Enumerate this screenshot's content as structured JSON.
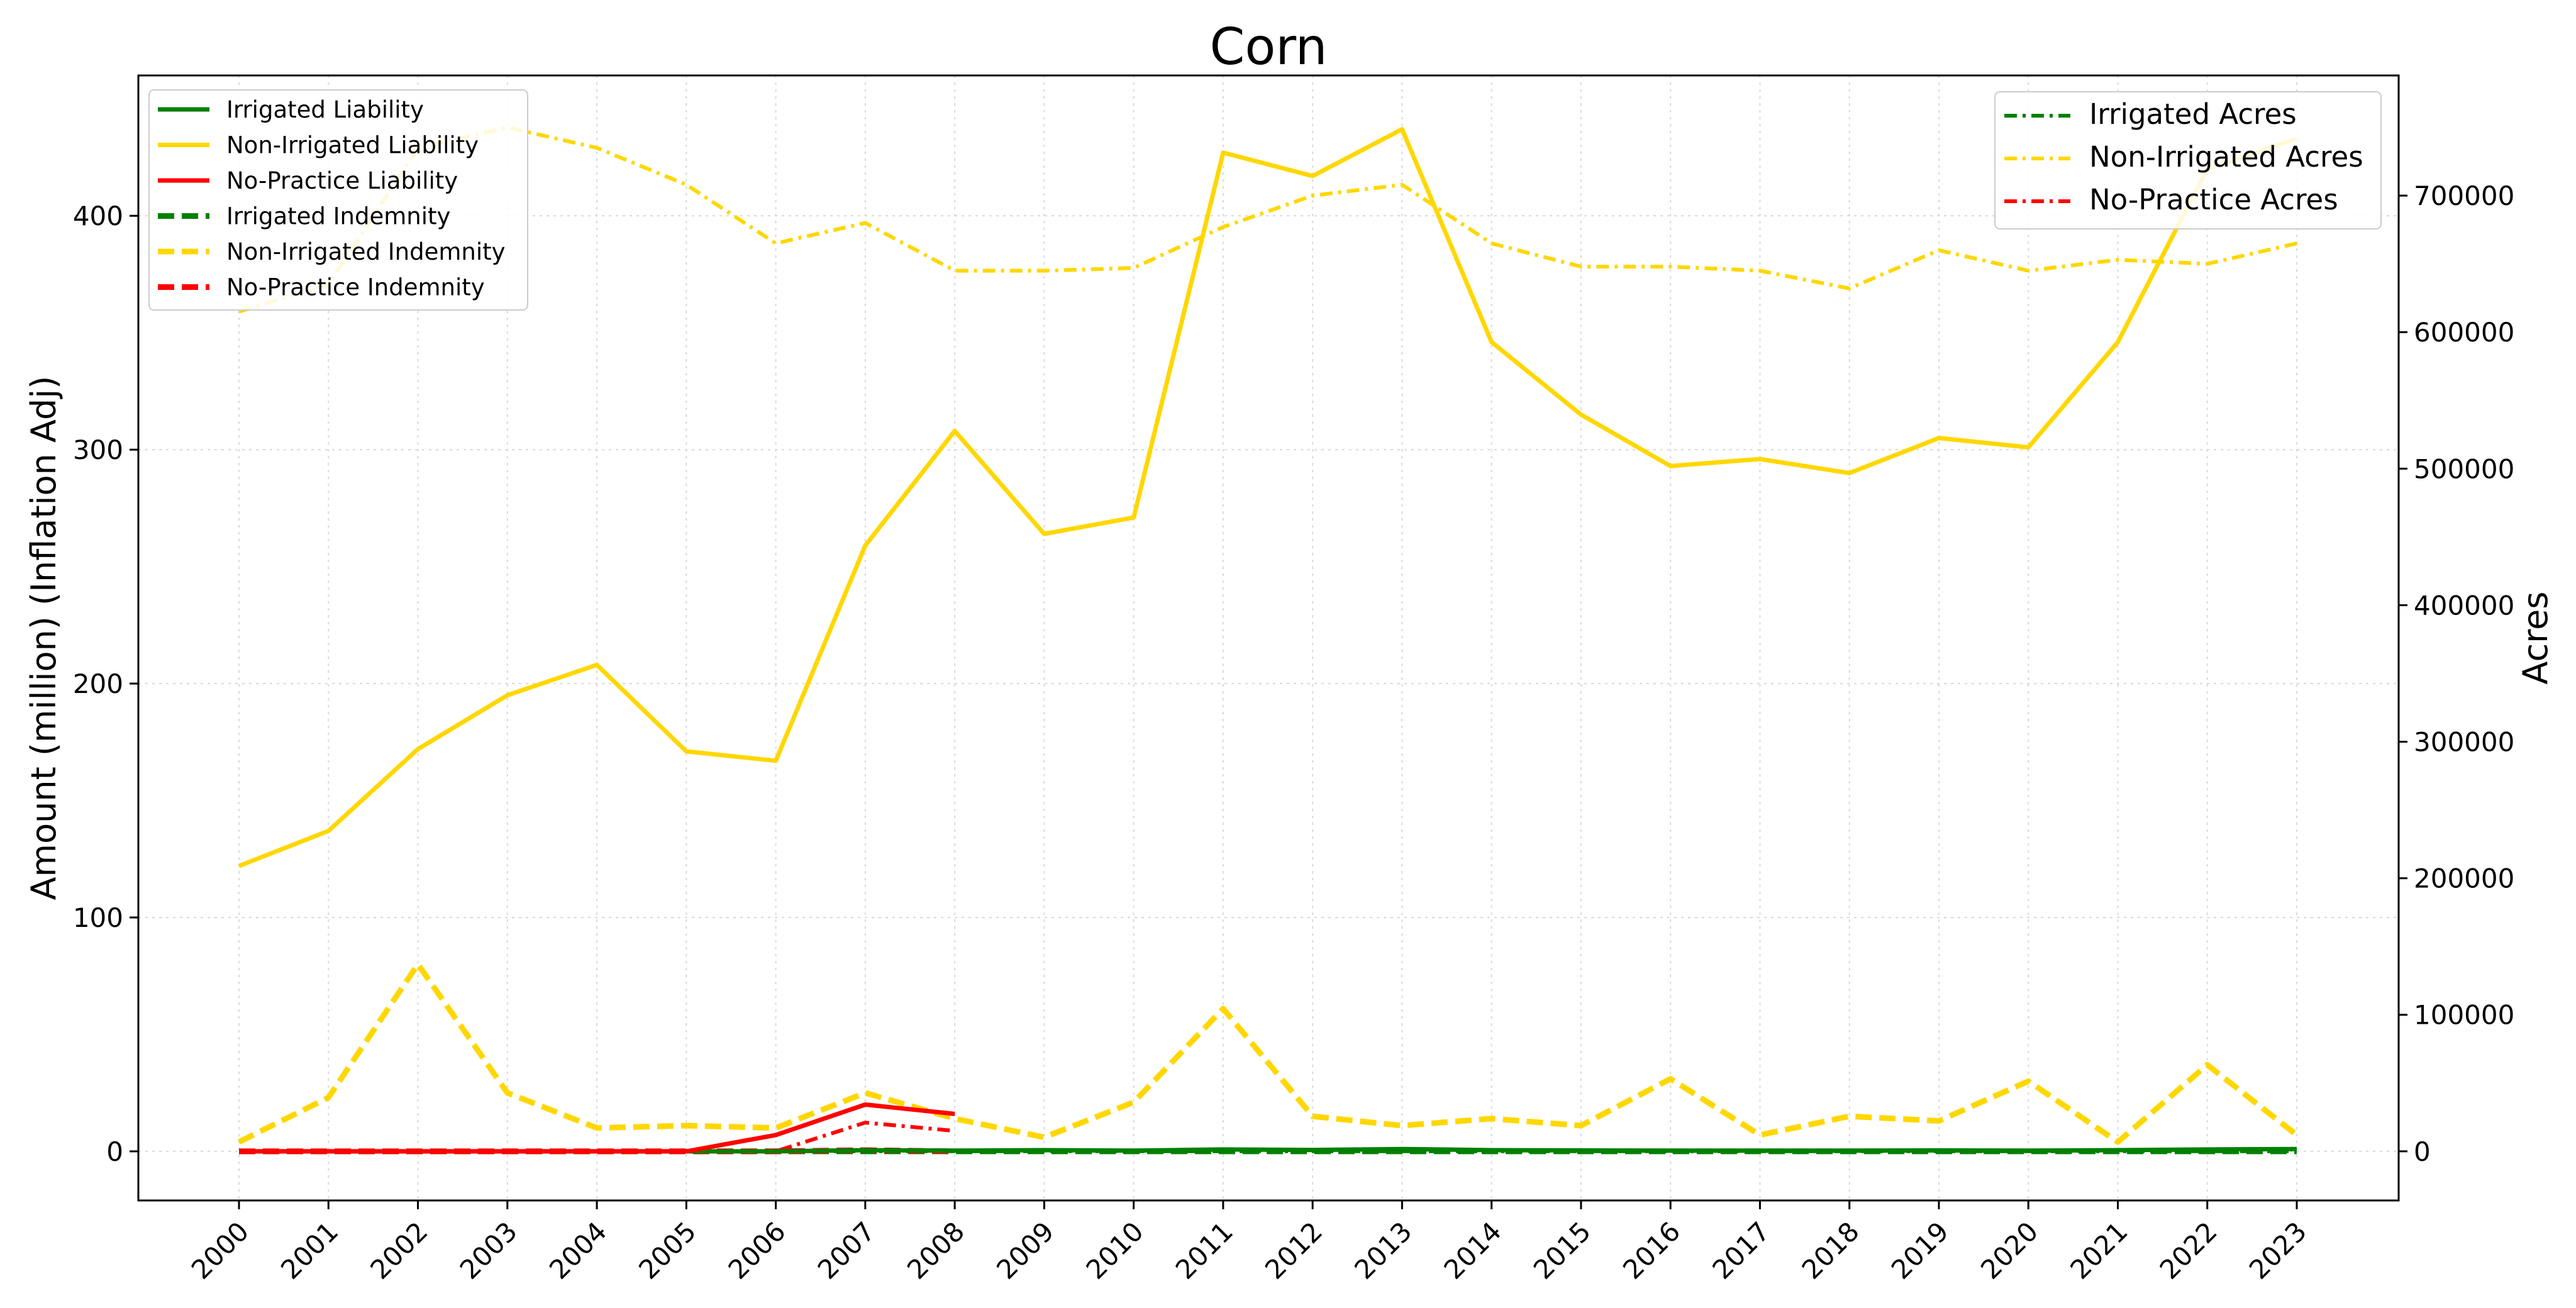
{
  "chart_data": {
    "type": "line",
    "title": "Corn",
    "xlabel": "",
    "ylabel_left": "Amount (million) (Inflation Adj)",
    "ylabel_right": "Acres",
    "x": [
      "2000",
      "2001",
      "2002",
      "2003",
      "2004",
      "2005",
      "2006",
      "2007",
      "2008",
      "2009",
      "2010",
      "2011",
      "2012",
      "2013",
      "2014",
      "2015",
      "2016",
      "2017",
      "2018",
      "2019",
      "2020",
      "2021",
      "2022",
      "2023"
    ],
    "ylim_left": [
      -21,
      460
    ],
    "ylim_right": [
      -36000,
      788000
    ],
    "yticks_left": [
      0,
      100,
      200,
      300,
      400
    ],
    "yticks_right": [
      0,
      100000,
      200000,
      300000,
      400000,
      500000,
      600000,
      700000
    ],
    "grid": true,
    "legend_left_placement": "top-left",
    "legend_right_placement": "top-right",
    "colors": {
      "irrigated": "#008000",
      "non_irrigated": "#FFD700",
      "no_practice": "#FF0000"
    },
    "series": [
      {
        "name": "Irrigated Liability",
        "axis": "left",
        "color": "#008000",
        "style": "solid",
        "values": [
          0,
          0,
          0,
          0,
          0,
          0,
          0,
          0.5,
          0.3,
          0.5,
          0.3,
          0.8,
          0.6,
          1,
          0.5,
          0.4,
          0.3,
          0.3,
          0.3,
          0.4,
          0.3,
          0.5,
          0.8,
          1
        ]
      },
      {
        "name": "Non-Irrigated Liability",
        "axis": "left",
        "color": "#FFD700",
        "style": "solid",
        "values": [
          122,
          137,
          172,
          195,
          208,
          171,
          167,
          259,
          308,
          264,
          271,
          427,
          417,
          437,
          346,
          315,
          293,
          296,
          290,
          305,
          301,
          346,
          420,
          433
        ]
      },
      {
        "name": "No-Practice Liability",
        "axis": "left",
        "color": "#FF0000",
        "style": "solid",
        "values": [
          0,
          0,
          0,
          0,
          0,
          0,
          7,
          20,
          16,
          null,
          null,
          null,
          null,
          null,
          null,
          null,
          null,
          null,
          null,
          null,
          null,
          null,
          null,
          null
        ]
      },
      {
        "name": "Irrigated Indemnity",
        "axis": "left",
        "color": "#008000",
        "style": "dashed",
        "values": [
          0,
          0,
          0,
          0,
          0,
          0,
          0,
          0,
          0,
          0,
          0,
          0,
          0,
          0,
          0,
          0,
          0,
          0,
          0,
          0,
          0,
          0,
          0,
          0
        ]
      },
      {
        "name": "Non-Irrigated Indemnity",
        "axis": "left",
        "color": "#FFD700",
        "style": "dashed",
        "values": [
          4,
          23,
          80,
          25,
          10,
          11,
          10,
          25,
          14,
          6,
          21,
          61,
          15,
          11,
          14,
          11,
          31,
          7,
          15,
          13,
          30,
          4,
          37,
          7
        ]
      },
      {
        "name": "No-Practice Indemnity",
        "axis": "left",
        "color": "#FF0000",
        "style": "dashed",
        "values": [
          0,
          0,
          0,
          0,
          0,
          0,
          0,
          0.5,
          0,
          null,
          null,
          null,
          null,
          null,
          null,
          null,
          null,
          null,
          null,
          null,
          null,
          null,
          null,
          null
        ]
      },
      {
        "name": "Irrigated Acres",
        "axis": "right",
        "color": "#008000",
        "style": "dashdot",
        "values": [
          0,
          0,
          0,
          0,
          0,
          0,
          0,
          0,
          0,
          0,
          0,
          0,
          0,
          0,
          0,
          0,
          0,
          0,
          0,
          0,
          0,
          0,
          0,
          0
        ]
      },
      {
        "name": "Non-Irrigated Acres",
        "axis": "right",
        "color": "#FFD700",
        "style": "dashdot",
        "values": [
          615000,
          635000,
          735000,
          750000,
          735000,
          708000,
          665000,
          680000,
          645000,
          645000,
          647000,
          677000,
          700000,
          708000,
          665000,
          648000,
          648000,
          645000,
          632000,
          660000,
          645000,
          653000,
          650000,
          665000
        ]
      },
      {
        "name": "No-Practice Acres",
        "axis": "right",
        "color": "#FF0000",
        "style": "dashdot",
        "values": [
          0,
          0,
          0,
          0,
          0,
          0,
          0,
          21000,
          15000,
          null,
          null,
          null,
          null,
          null,
          null,
          null,
          null,
          null,
          null,
          null,
          null,
          null,
          null,
          null
        ]
      }
    ],
    "legend_left": [
      "Irrigated Liability",
      "Non-Irrigated Liability",
      "No-Practice Liability",
      "Irrigated Indemnity",
      "Non-Irrigated Indemnity",
      "No-Practice Indemnity"
    ],
    "legend_right": [
      "Irrigated Acres",
      "Non-Irrigated Acres",
      "No-Practice Acres"
    ]
  }
}
